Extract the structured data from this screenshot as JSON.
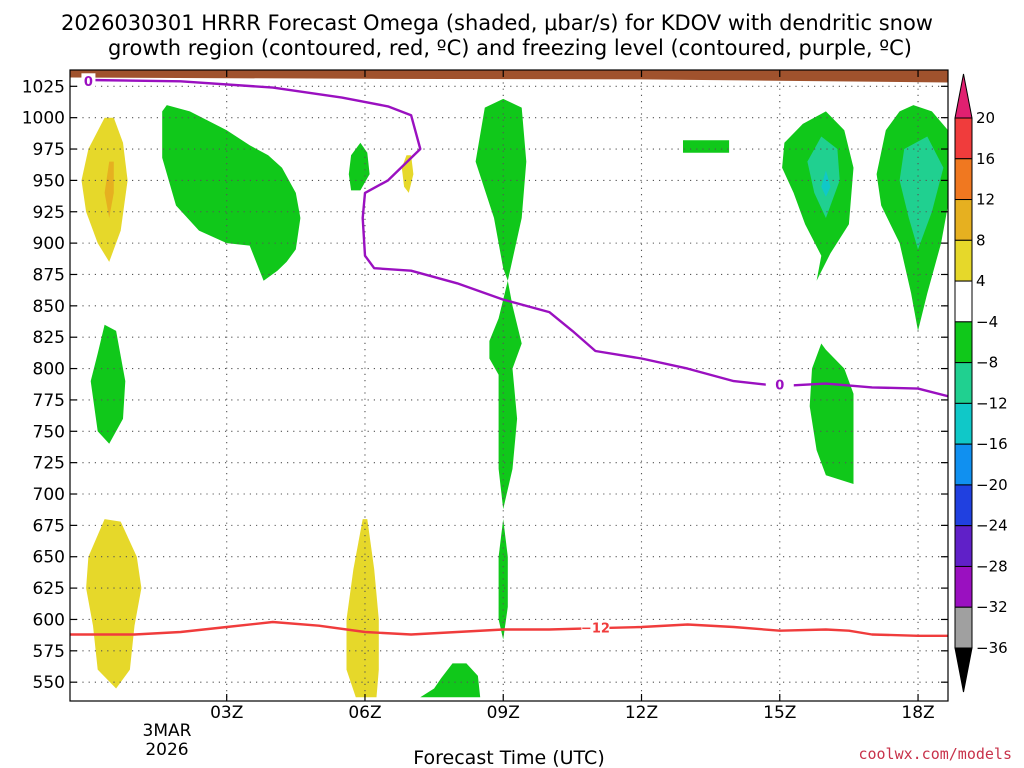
{
  "chart_data": {
    "type": "heatmap",
    "title_line1": "2026030301 HRRR Forecast Omega (shaded, μbar/s) for KDOV with dendritic snow",
    "title_line2": "growth region (contoured, red, ºC) and freezing level (contoured, purple, ºC)",
    "xlabel": "Forecast Time (UTC)",
    "x_range_hours": [
      -0.4,
      18.65
    ],
    "x_ticks": [
      {
        "hour": 3,
        "label": "03Z"
      },
      {
        "hour": 6,
        "label": "06Z"
      },
      {
        "hour": 9,
        "label": "09Z"
      },
      {
        "hour": 12,
        "label": "12Z"
      },
      {
        "hour": 15,
        "label": "15Z"
      },
      {
        "hour": 18,
        "label": "18Z"
      }
    ],
    "date_label_line1": "3MAR",
    "date_label_line2": "2026",
    "y_range_mb": [
      1038,
      535
    ],
    "y_ticks": [
      550,
      575,
      600,
      625,
      650,
      675,
      700,
      725,
      750,
      775,
      800,
      825,
      850,
      875,
      900,
      925,
      950,
      975,
      1000,
      1025
    ],
    "colorbar": {
      "levels": [
        20,
        16,
        12,
        8,
        4,
        -4,
        -8,
        -12,
        -16,
        -20,
        -24,
        -28,
        -32,
        -36
      ],
      "labels": [
        "20",
        "16",
        "12",
        "8",
        "4",
        "−4",
        "−8",
        "−12",
        "−16",
        "−20",
        "−24",
        "−28",
        "−32",
        "−36"
      ],
      "colors": [
        "#e02070",
        "#f03c3c",
        "#f07820",
        "#e6b020",
        "#e6d82a",
        "#ffffff",
        "#10c81a",
        "#20d090",
        "#10c8c8",
        "#1090f0",
        "#2040e0",
        "#6020c8",
        "#9a10c0",
        "#a0a0a0",
        "#000000"
      ]
    },
    "colors": {
      "upward_weak": "#10c81a",
      "upward_mod": "#20d090",
      "upward_strong": "#10c8c8",
      "downward_weak": "#e6d82a",
      "downward_mod": "#e6b020",
      "dgz_line": "#f03c3c",
      "freezing_line": "#9a10c0",
      "terrain": "#a0522d"
    },
    "dgz_contour": {
      "label": "−12",
      "label_at": [
        11.0,
        593
      ],
      "points": [
        [
          -0.4,
          588
        ],
        [
          1.0,
          588
        ],
        [
          2.0,
          590
        ],
        [
          3.0,
          594
        ],
        [
          4.0,
          598
        ],
        [
          5.0,
          595
        ],
        [
          6.0,
          590
        ],
        [
          7.0,
          588
        ],
        [
          8.0,
          590
        ],
        [
          9.0,
          592
        ],
        [
          10.0,
          592
        ],
        [
          11.0,
          593
        ],
        [
          12.0,
          594
        ],
        [
          13.0,
          596
        ],
        [
          14.0,
          594
        ],
        [
          15.0,
          591
        ],
        [
          16.0,
          592
        ],
        [
          16.5,
          591
        ],
        [
          17.0,
          588
        ],
        [
          18.0,
          587
        ],
        [
          18.65,
          587
        ]
      ]
    },
    "freezing_contour": {
      "label": "0",
      "label_at": [
        15.0,
        787
      ],
      "points": [
        [
          0.0,
          1030
        ],
        [
          2.0,
          1029
        ],
        [
          4.0,
          1024
        ],
        [
          5.5,
          1016
        ],
        [
          6.5,
          1009
        ],
        [
          7.0,
          1002
        ],
        [
          7.2,
          975
        ],
        [
          6.5,
          950
        ],
        [
          6.0,
          940
        ],
        [
          5.95,
          920
        ],
        [
          6.0,
          890
        ],
        [
          6.2,
          880
        ],
        [
          7.0,
          878
        ],
        [
          8.0,
          868
        ],
        [
          9.0,
          855
        ],
        [
          10.0,
          845
        ],
        [
          10.5,
          830
        ],
        [
          11.0,
          814
        ],
        [
          12.0,
          808
        ],
        [
          13.0,
          800
        ],
        [
          14.0,
          790
        ],
        [
          15.0,
          786
        ],
        [
          16.0,
          788
        ],
        [
          17.0,
          785
        ],
        [
          18.0,
          784
        ],
        [
          18.65,
          778
        ]
      ]
    },
    "omega_regions": [
      {
        "cls": "upward_weak",
        "pts": [
          [
            8.6,
            1008
          ],
          [
            8.4,
            965
          ],
          [
            8.8,
            920
          ],
          [
            9.0,
            880
          ],
          [
            9.1,
            870
          ],
          [
            8.9,
            840
          ],
          [
            8.7,
            822
          ],
          [
            8.7,
            808
          ],
          [
            8.9,
            795
          ],
          [
            8.9,
            760
          ],
          [
            8.9,
            720
          ],
          [
            9.0,
            688
          ],
          [
            9.2,
            720
          ],
          [
            9.3,
            760
          ],
          [
            9.2,
            800
          ],
          [
            9.4,
            820
          ],
          [
            9.2,
            850
          ],
          [
            9.1,
            870
          ],
          [
            9.4,
            920
          ],
          [
            9.5,
            965
          ],
          [
            9.4,
            1008
          ],
          [
            9.0,
            1015
          ]
        ]
      },
      {
        "cls": "upward_weak",
        "pts": [
          [
            8.9,
            600
          ],
          [
            9.0,
            584
          ],
          [
            9.1,
            610
          ],
          [
            9.1,
            650
          ],
          [
            9.0,
            680
          ],
          [
            8.9,
            650
          ]
        ]
      },
      {
        "cls": "upward_weak",
        "pts": [
          [
            7.2,
            538
          ],
          [
            7.5,
            538
          ],
          [
            8.0,
            538
          ],
          [
            8.5,
            538
          ],
          [
            8.45,
            555
          ],
          [
            8.2,
            565
          ],
          [
            7.9,
            565
          ],
          [
            7.65,
            553
          ],
          [
            7.5,
            545
          ]
        ]
      },
      {
        "cls": "upward_weak",
        "pts": [
          [
            1.6,
            1005
          ],
          [
            1.7,
            1010
          ],
          [
            2.2,
            1005
          ],
          [
            3.0,
            990
          ],
          [
            3.5,
            978
          ],
          [
            3.9,
            970
          ],
          [
            4.2,
            960
          ],
          [
            4.5,
            940
          ],
          [
            4.6,
            920
          ],
          [
            4.5,
            895
          ],
          [
            4.3,
            885
          ],
          [
            4.1,
            878
          ],
          [
            3.8,
            870
          ],
          [
            3.5,
            898
          ],
          [
            3.0,
            900
          ],
          [
            2.4,
            910
          ],
          [
            1.9,
            930
          ],
          [
            1.6,
            968
          ]
        ]
      },
      {
        "cls": "upward_weak",
        "pts": [
          [
            5.7,
            942
          ],
          [
            5.9,
            942
          ],
          [
            6.1,
            955
          ],
          [
            6.05,
            972
          ],
          [
            5.9,
            980
          ],
          [
            5.7,
            970
          ],
          [
            5.65,
            955
          ]
        ]
      },
      {
        "cls": "upward_weak",
        "pts": [
          [
            12.9,
            972
          ],
          [
            13.9,
            972
          ],
          [
            13.9,
            982
          ],
          [
            12.9,
            982
          ]
        ]
      },
      {
        "cls": "upward_weak",
        "pts": [
          [
            15.6,
            970
          ],
          [
            15.3,
            940
          ],
          [
            15.55,
            915
          ],
          [
            15.9,
            890
          ],
          [
            15.8,
            870
          ],
          [
            16.1,
            892
          ],
          [
            16.5,
            915
          ],
          [
            16.6,
            960
          ],
          [
            16.4,
            990
          ],
          [
            16.0,
            1005
          ],
          [
            15.5,
            995
          ],
          [
            15.1,
            980
          ],
          [
            15.05,
            960
          ],
          [
            15.3,
            940
          ]
        ]
      },
      {
        "cls": "upward_weak",
        "pts": [
          [
            16.6,
            708
          ],
          [
            16.0,
            715
          ],
          [
            15.8,
            735
          ],
          [
            15.65,
            770
          ],
          [
            15.7,
            800
          ],
          [
            15.9,
            820
          ],
          [
            16.0,
            815
          ],
          [
            16.4,
            800
          ],
          [
            16.6,
            780
          ],
          [
            16.6,
            740
          ]
        ]
      },
      {
        "cls": "upward_weak",
        "pts": [
          [
            17.6,
            1005
          ],
          [
            17.3,
            990
          ],
          [
            17.1,
            955
          ],
          [
            17.2,
            930
          ],
          [
            17.6,
            900
          ],
          [
            17.85,
            860
          ],
          [
            18.0,
            830
          ],
          [
            18.2,
            860
          ],
          [
            18.5,
            900
          ],
          [
            18.65,
            930
          ],
          [
            18.65,
            990
          ],
          [
            18.3,
            1005
          ],
          [
            17.9,
            1010
          ]
        ]
      },
      {
        "cls": "upward_weak",
        "pts": [
          [
            0.2,
            812
          ],
          [
            0.05,
            790
          ],
          [
            0.2,
            750
          ],
          [
            0.45,
            740
          ],
          [
            0.75,
            760
          ],
          [
            0.8,
            790
          ],
          [
            0.6,
            830
          ],
          [
            0.35,
            835
          ]
        ]
      },
      {
        "cls": "upward_mod",
        "pts": [
          [
            15.9,
            985
          ],
          [
            15.6,
            965
          ],
          [
            15.75,
            940
          ],
          [
            16.0,
            920
          ],
          [
            16.3,
            950
          ],
          [
            16.25,
            975
          ]
        ]
      },
      {
        "cls": "upward_mod",
        "pts": [
          [
            17.7,
            975
          ],
          [
            17.6,
            950
          ],
          [
            17.8,
            920
          ],
          [
            18.0,
            895
          ],
          [
            18.3,
            925
          ],
          [
            18.55,
            960
          ],
          [
            18.2,
            985
          ]
        ]
      },
      {
        "cls": "upward_strong",
        "pts": [
          [
            16.0,
            958
          ],
          [
            15.9,
            945
          ],
          [
            16.0,
            937
          ],
          [
            16.1,
            945
          ]
        ]
      },
      {
        "cls": "downward_weak",
        "pts": [
          [
            0.35,
            680
          ],
          [
            0.0,
            650
          ],
          [
            -0.05,
            625
          ],
          [
            0.1,
            595
          ],
          [
            0.2,
            560
          ],
          [
            0.6,
            545
          ],
          [
            0.9,
            560
          ],
          [
            1.0,
            595
          ],
          [
            1.15,
            625
          ],
          [
            1.05,
            650
          ],
          [
            0.7,
            678
          ]
        ]
      },
      {
        "cls": "downward_weak",
        "pts": [
          [
            0.35,
            1000
          ],
          [
            0.0,
            975
          ],
          [
            -0.15,
            950
          ],
          [
            -0.05,
            925
          ],
          [
            0.2,
            900
          ],
          [
            0.45,
            885
          ],
          [
            0.7,
            910
          ],
          [
            0.85,
            950
          ],
          [
            0.75,
            980
          ],
          [
            0.55,
            1000
          ]
        ]
      },
      {
        "cls": "downward_weak",
        "pts": [
          [
            5.95,
            680
          ],
          [
            5.75,
            640
          ],
          [
            5.6,
            600
          ],
          [
            5.6,
            560
          ],
          [
            5.8,
            538
          ],
          [
            6.25,
            538
          ],
          [
            6.3,
            560
          ],
          [
            6.3,
            600
          ],
          [
            6.2,
            640
          ],
          [
            6.05,
            680
          ]
        ]
      },
      {
        "cls": "downward_weak",
        "pts": [
          [
            6.9,
            970
          ],
          [
            6.8,
            960
          ],
          [
            6.85,
            945
          ],
          [
            6.95,
            940
          ],
          [
            7.05,
            955
          ],
          [
            7.0,
            970
          ]
        ]
      },
      {
        "cls": "downward_mod",
        "pts": [
          [
            0.45,
            965
          ],
          [
            0.35,
            940
          ],
          [
            0.45,
            920
          ],
          [
            0.55,
            940
          ],
          [
            0.55,
            965
          ]
        ]
      }
    ],
    "credit": "coolwx.com/models"
  }
}
